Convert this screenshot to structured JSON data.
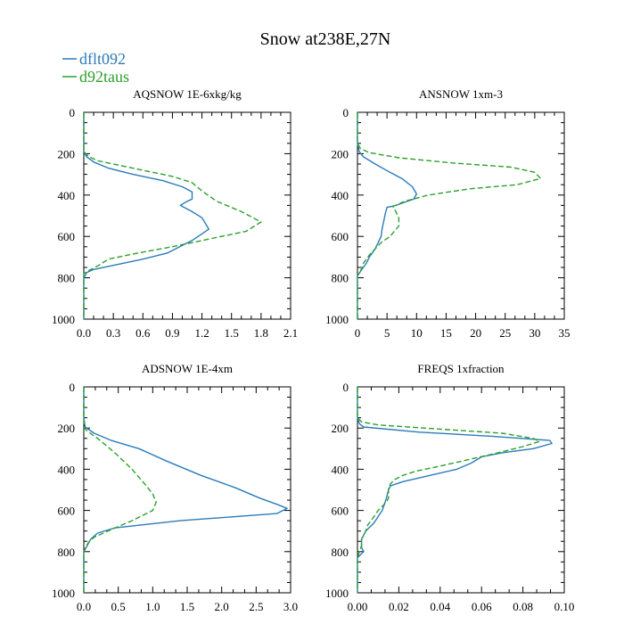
{
  "figure": {
    "title": "Snow at238E,27N",
    "legend": [
      {
        "label": "dflt092",
        "color": "#2b7bba",
        "dash": "solid"
      },
      {
        "label": "d92taus",
        "color": "#2ca02c",
        "dash": "dashed"
      }
    ]
  },
  "chart_data": [
    {
      "type": "line",
      "title": "AQSNOW  1E-6xkg/kg",
      "xlim": [
        0,
        2.1
      ],
      "ylim": [
        1000,
        0
      ],
      "xticks": [
        0.0,
        0.3,
        0.6,
        0.9,
        1.2,
        1.5,
        1.8,
        2.1
      ],
      "xtick_labels": [
        "0.0",
        "0.3",
        "0.6",
        "0.9",
        "1.2",
        "1.5",
        "1.8",
        "2.1"
      ],
      "yticks": [
        0,
        200,
        400,
        600,
        800,
        1000
      ],
      "ytick_labels": [
        "0",
        "200",
        "400",
        "600",
        "800",
        "1000"
      ],
      "series": [
        {
          "name": "dflt092",
          "points": [
            [
              0,
              0
            ],
            [
              0,
              100
            ],
            [
              0,
              190
            ],
            [
              0.03,
              215
            ],
            [
              0.1,
              240
            ],
            [
              0.25,
              270
            ],
            [
              0.5,
              300
            ],
            [
              0.8,
              330
            ],
            [
              1.0,
              360
            ],
            [
              1.1,
              385
            ],
            [
              1.1,
              420
            ],
            [
              1.05,
              430
            ],
            [
              0.98,
              450
            ],
            [
              1.1,
              480
            ],
            [
              1.2,
              510
            ],
            [
              1.27,
              565
            ],
            [
              1.1,
              620
            ],
            [
              0.85,
              680
            ],
            [
              0.6,
              710
            ],
            [
              0.3,
              740
            ],
            [
              0.1,
              760
            ],
            [
              0.03,
              775
            ],
            [
              0,
              800
            ],
            [
              0,
              1000
            ]
          ]
        },
        {
          "name": "d92taus",
          "points": [
            [
              0,
              0
            ],
            [
              0,
              100
            ],
            [
              0,
              190
            ],
            [
              0.05,
              215
            ],
            [
              0.15,
              235
            ],
            [
              0.35,
              255
            ],
            [
              0.6,
              280
            ],
            [
              0.9,
              310
            ],
            [
              1.1,
              340
            ],
            [
              1.2,
              380
            ],
            [
              1.35,
              430
            ],
            [
              1.6,
              480
            ],
            [
              1.8,
              530
            ],
            [
              1.65,
              575
            ],
            [
              1.3,
              610
            ],
            [
              0.9,
              650
            ],
            [
              0.55,
              680
            ],
            [
              0.25,
              710
            ],
            [
              0.15,
              740
            ],
            [
              0.05,
              765
            ],
            [
              0,
              780
            ],
            [
              0,
              1000
            ]
          ]
        }
      ]
    },
    {
      "type": "line",
      "title": "ANSNOW  1xm-3",
      "xlim": [
        0,
        35
      ],
      "ylim": [
        1000,
        0
      ],
      "xticks": [
        0,
        5,
        10,
        15,
        20,
        25,
        30,
        35
      ],
      "xtick_labels": [
        "0",
        "5",
        "10",
        "15",
        "20",
        "25",
        "30",
        "35"
      ],
      "yticks": [
        0,
        200,
        400,
        600,
        800,
        1000
      ],
      "ytick_labels": [
        "0",
        "200",
        "400",
        "600",
        "800",
        "1000"
      ],
      "series": [
        {
          "name": "dflt092",
          "points": [
            [
              0,
              0
            ],
            [
              0,
              150
            ],
            [
              0.3,
              190
            ],
            [
              1,
              215
            ],
            [
              3,
              250
            ],
            [
              5.5,
              290
            ],
            [
              7.5,
              320
            ],
            [
              9.3,
              360
            ],
            [
              10,
              395
            ],
            [
              9.5,
              420
            ],
            [
              6.5,
              450
            ],
            [
              5,
              460
            ],
            [
              4.7,
              490
            ],
            [
              4.5,
              520
            ],
            [
              4.2,
              560
            ],
            [
              4,
              600
            ],
            [
              3.5,
              630
            ],
            [
              3,
              660
            ],
            [
              2.5,
              680
            ],
            [
              2,
              700
            ],
            [
              1.5,
              730
            ],
            [
              1,
              750
            ],
            [
              0.5,
              770
            ],
            [
              0,
              790
            ],
            [
              0,
              1000
            ]
          ]
        },
        {
          "name": "d92taus",
          "points": [
            [
              0,
              0
            ],
            [
              0,
              150
            ],
            [
              0.5,
              175
            ],
            [
              2,
              195
            ],
            [
              7,
              220
            ],
            [
              16,
              245
            ],
            [
              26,
              265
            ],
            [
              30,
              290
            ],
            [
              31,
              320
            ],
            [
              27,
              350
            ],
            [
              19,
              370
            ],
            [
              12,
              400
            ],
            [
              8,
              430
            ],
            [
              6,
              455
            ],
            [
              6.5,
              480
            ],
            [
              7,
              510
            ],
            [
              7,
              550
            ],
            [
              5.5,
              600
            ],
            [
              4,
              630
            ],
            [
              3,
              660
            ],
            [
              2,
              690
            ],
            [
              1,
              730
            ],
            [
              0.5,
              770
            ],
            [
              0,
              790
            ],
            [
              0,
              1000
            ]
          ]
        }
      ]
    },
    {
      "type": "line",
      "title": "ADSNOW  1E-4xm",
      "xlim": [
        0,
        3.0
      ],
      "ylim": [
        1000,
        0
      ],
      "xticks": [
        0.0,
        0.5,
        1.0,
        1.5,
        2.0,
        2.5,
        3.0
      ],
      "xtick_labels": [
        "0.0",
        "0.5",
        "1.0",
        "1.5",
        "2.0",
        "2.5",
        "3.0"
      ],
      "yticks": [
        0,
        200,
        400,
        600,
        800,
        1000
      ],
      "ytick_labels": [
        "0",
        "200",
        "400",
        "600",
        "800",
        "1000"
      ],
      "series": [
        {
          "name": "dflt092",
          "points": [
            [
              0,
              0
            ],
            [
              0,
              150
            ],
            [
              0.02,
              195
            ],
            [
              0.15,
              225
            ],
            [
              0.4,
              260
            ],
            [
              0.8,
              300
            ],
            [
              1.2,
              360
            ],
            [
              1.7,
              430
            ],
            [
              2.2,
              490
            ],
            [
              2.55,
              540
            ],
            [
              2.8,
              570
            ],
            [
              2.95,
              590
            ],
            [
              2.8,
              615
            ],
            [
              1.4,
              650
            ],
            [
              0.45,
              685
            ],
            [
              0.2,
              710
            ],
            [
              0.1,
              740
            ],
            [
              0.05,
              770
            ],
            [
              0,
              800
            ],
            [
              0,
              1000
            ]
          ]
        },
        {
          "name": "d92taus",
          "points": [
            [
              0,
              0
            ],
            [
              0,
              150
            ],
            [
              0,
              195
            ],
            [
              0.05,
              215
            ],
            [
              0.2,
              250
            ],
            [
              0.45,
              320
            ],
            [
              0.7,
              400
            ],
            [
              0.88,
              470
            ],
            [
              1.0,
              520
            ],
            [
              1.05,
              560
            ],
            [
              1.0,
              600
            ],
            [
              0.7,
              650
            ],
            [
              0.35,
              700
            ],
            [
              0.15,
              730
            ],
            [
              0.08,
              750
            ],
            [
              0.04,
              770
            ],
            [
              0,
              800
            ],
            [
              0,
              1000
            ]
          ]
        }
      ]
    },
    {
      "type": "line",
      "title": "FREQS  1xfraction",
      "xlim": [
        0,
        0.1
      ],
      "ylim": [
        1000,
        0
      ],
      "xticks": [
        0.0,
        0.02,
        0.04,
        0.06,
        0.08,
        0.1
      ],
      "xtick_labels": [
        "0.00",
        "0.02",
        "0.04",
        "0.06",
        "0.08",
        "0.10"
      ],
      "yticks": [
        0,
        200,
        400,
        600,
        800,
        1000
      ],
      "ytick_labels": [
        "0",
        "200",
        "400",
        "600",
        "800",
        "1000"
      ],
      "series": [
        {
          "name": "dflt092",
          "points": [
            [
              0,
              0
            ],
            [
              0,
              150
            ],
            [
              0.001,
              180
            ],
            [
              0.003,
              195
            ],
            [
              0.03,
              220
            ],
            [
              0.065,
              240
            ],
            [
              0.093,
              260
            ],
            [
              0.094,
              275
            ],
            [
              0.085,
              300
            ],
            [
              0.07,
              320
            ],
            [
              0.06,
              340
            ],
            [
              0.055,
              370
            ],
            [
              0.048,
              400
            ],
            [
              0.035,
              430
            ],
            [
              0.022,
              460
            ],
            [
              0.016,
              480
            ],
            [
              0.015,
              500
            ],
            [
              0.014,
              540
            ],
            [
              0.013,
              570
            ],
            [
              0.012,
              600
            ],
            [
              0.01,
              630
            ],
            [
              0.008,
              660
            ],
            [
              0.006,
              680
            ],
            [
              0.004,
              700
            ],
            [
              0.003,
              720
            ],
            [
              0.002,
              740
            ],
            [
              0.002,
              760
            ],
            [
              0.002,
              780
            ],
            [
              0.003,
              800
            ],
            [
              0.002,
              810
            ],
            [
              0,
              830
            ],
            [
              0,
              1000
            ]
          ]
        },
        {
          "name": "d92taus",
          "points": [
            [
              0,
              0
            ],
            [
              0,
              150
            ],
            [
              0.002,
              170
            ],
            [
              0.01,
              185
            ],
            [
              0.04,
              205
            ],
            [
              0.07,
              225
            ],
            [
              0.085,
              250
            ],
            [
              0.088,
              265
            ],
            [
              0.08,
              290
            ],
            [
              0.068,
              320
            ],
            [
              0.055,
              350
            ],
            [
              0.042,
              380
            ],
            [
              0.028,
              410
            ],
            [
              0.022,
              430
            ],
            [
              0.018,
              450
            ],
            [
              0.016,
              470
            ],
            [
              0.015,
              490
            ],
            [
              0.015,
              510
            ],
            [
              0.015,
              540
            ],
            [
              0.014,
              560
            ],
            [
              0.012,
              580
            ],
            [
              0.01,
              600
            ],
            [
              0.008,
              630
            ],
            [
              0.005,
              670
            ],
            [
              0.004,
              700
            ],
            [
              0.003,
              720
            ],
            [
              0.002,
              740
            ],
            [
              0.002,
              770
            ],
            [
              0.001,
              800
            ],
            [
              0,
              830
            ],
            [
              0,
              1000
            ]
          ]
        }
      ]
    }
  ]
}
